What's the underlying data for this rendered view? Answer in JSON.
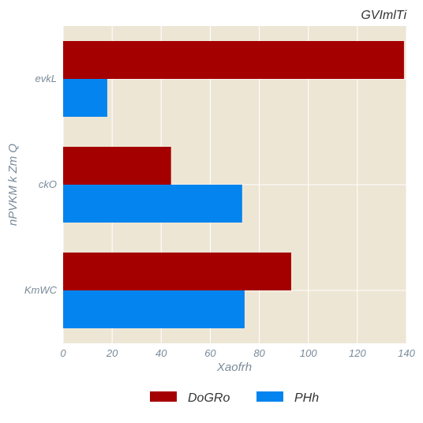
{
  "chart_data": {
    "type": "bar",
    "orientation": "horizontal",
    "title": "GVImlTi",
    "xlabel": "Xaofrh",
    "ylabel": "nPVKM k Zm Q",
    "categories": [
      "KmWC",
      "ckO",
      "evkL"
    ],
    "series": [
      {
        "name": "DoGRo",
        "color": "#a50000",
        "values": [
          93,
          44,
          139
        ]
      },
      {
        "name": "PHh",
        "color": "#0484ef",
        "values": [
          74,
          73,
          18
        ]
      }
    ],
    "xlim": [
      0,
      140
    ],
    "xticks": [
      0,
      20,
      40,
      60,
      80,
      100,
      120,
      140
    ],
    "grid": true,
    "legend_position": "bottom",
    "background": "#ede6d5"
  }
}
